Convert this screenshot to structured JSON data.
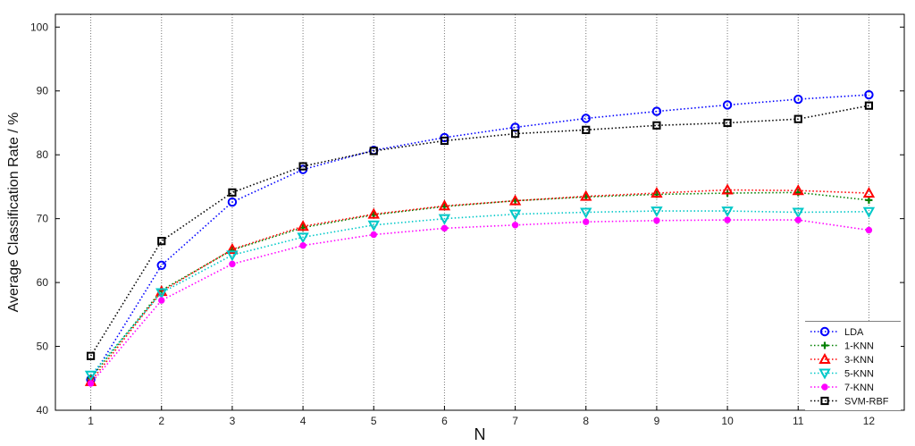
{
  "chart_data": {
    "type": "line",
    "xlabel": "N",
    "ylabel": "Average Classification Rate / %",
    "x": [
      1,
      2,
      3,
      4,
      5,
      6,
      7,
      8,
      9,
      10,
      11,
      12
    ],
    "xlim": [
      0.5,
      12.5
    ],
    "ylim": [
      40,
      102
    ],
    "xticks": [
      1,
      2,
      3,
      4,
      5,
      6,
      7,
      8,
      9,
      10,
      11,
      12
    ],
    "yticks": [
      40,
      50,
      60,
      70,
      80,
      90,
      100
    ],
    "grid": "vertical dotted",
    "legend_position": "bottom-right",
    "series": [
      {
        "name": "LDA",
        "color": "#0000ff",
        "marker": "circle",
        "values": [
          44.8,
          62.7,
          72.6,
          77.7,
          80.7,
          82.7,
          84.3,
          85.7,
          86.8,
          87.8,
          88.7,
          89.4
        ]
      },
      {
        "name": "1-KNN",
        "color": "#008000",
        "marker": "plus",
        "values": [
          45.0,
          58.8,
          65.1,
          68.6,
          70.6,
          71.9,
          72.8,
          73.4,
          73.8,
          74.0,
          74.1,
          72.9
        ]
      },
      {
        "name": "3-KNN",
        "color": "#ff0000",
        "marker": "triangle-up",
        "values": [
          44.5,
          58.6,
          65.2,
          68.8,
          70.7,
          72.0,
          72.8,
          73.5,
          74.0,
          74.5,
          74.4,
          74.0
        ]
      },
      {
        "name": "5-KNN",
        "color": "#00c8c8",
        "marker": "triangle-down",
        "values": [
          45.5,
          58.4,
          64.3,
          67.1,
          69.0,
          70.0,
          70.7,
          71.0,
          71.2,
          71.2,
          71.0,
          71.1
        ]
      },
      {
        "name": "7-KNN",
        "color": "#ff00ff",
        "marker": "dot",
        "values": [
          44.2,
          57.2,
          62.9,
          65.8,
          67.5,
          68.5,
          69.0,
          69.5,
          69.7,
          69.8,
          69.8,
          68.2
        ]
      },
      {
        "name": "SVM-RBF",
        "color": "#000000",
        "marker": "square",
        "values": [
          48.5,
          66.5,
          74.1,
          78.2,
          80.6,
          82.2,
          83.3,
          83.9,
          84.6,
          85.0,
          85.6,
          87.7
        ]
      }
    ]
  }
}
